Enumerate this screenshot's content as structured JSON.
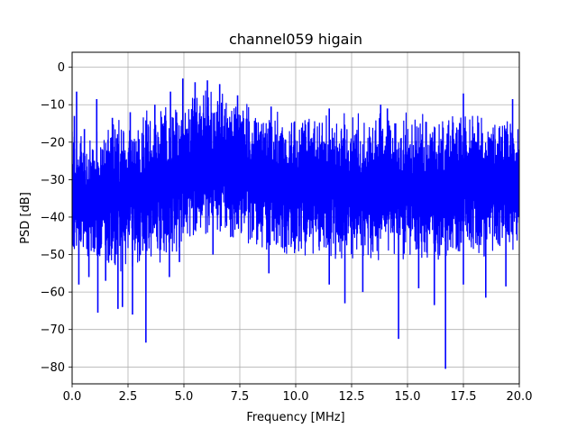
{
  "chart_data": {
    "type": "line",
    "title": "channel059 higain",
    "xlabel": "Frequency [MHz]",
    "ylabel": "PSD [dB]",
    "xlim": [
      0,
      20
    ],
    "ylim": [
      -84.5,
      4
    ],
    "grid": true,
    "line_color": "#0000ff",
    "x_ticks": [
      {
        "value": 0,
        "label": "0.0"
      },
      {
        "value": 2.5,
        "label": "2.5"
      },
      {
        "value": 5,
        "label": "5.0"
      },
      {
        "value": 7.5,
        "label": "7.5"
      },
      {
        "value": 10,
        "label": "10.0"
      },
      {
        "value": 12.5,
        "label": "12.5"
      },
      {
        "value": 15,
        "label": "15.0"
      },
      {
        "value": 17.5,
        "label": "17.5"
      },
      {
        "value": 20,
        "label": "20.0"
      }
    ],
    "y_ticks": [
      {
        "value": 0,
        "label": "0"
      },
      {
        "value": -10,
        "label": "−10"
      },
      {
        "value": -20,
        "label": "−20"
      },
      {
        "value": -30,
        "label": "−30"
      },
      {
        "value": -40,
        "label": "−40"
      },
      {
        "value": -50,
        "label": "−50"
      },
      {
        "value": -60,
        "label": "−60"
      },
      {
        "value": -70,
        "label": "−70"
      },
      {
        "value": -80,
        "label": "−80"
      }
    ],
    "series": [
      {
        "upper_envelope": {
          "x": [
            0,
            0.5,
            1,
            1.5,
            2,
            2.5,
            3,
            3.5,
            4,
            4.5,
            5,
            5.5,
            6,
            6.5,
            7,
            7.5,
            8,
            8.5,
            9,
            9.5,
            10,
            10.5,
            11,
            11.5,
            12,
            12.5,
            13,
            13.5,
            14,
            14.5,
            15,
            15.5,
            16,
            16.5,
            17,
            17.5,
            18,
            18.5,
            19,
            19.5,
            20
          ],
          "y": [
            -17,
            -16.5,
            -16,
            -15,
            -14,
            -13,
            -12,
            -11,
            -10,
            -9,
            -7,
            -5.5,
            -5,
            -5.5,
            -7,
            -8.5,
            -10,
            -11,
            -11.5,
            -12,
            -12,
            -12,
            -12,
            -12,
            -12,
            -12,
            -12,
            -12,
            -12,
            -12,
            -12,
            -12,
            -12.5,
            -12.5,
            -12.5,
            -12,
            -12,
            -12,
            -12,
            -12,
            -12.5
          ]
        },
        "lower_envelope": {
          "x": [
            0,
            0.5,
            1,
            1.5,
            2,
            2.5,
            3,
            3.5,
            4,
            4.5,
            5,
            5.5,
            6,
            6.5,
            7,
            7.5,
            8,
            8.5,
            9,
            9.5,
            10,
            10.5,
            11,
            11.5,
            12,
            12.5,
            13,
            13.5,
            14,
            14.5,
            15,
            15.5,
            16,
            16.5,
            17,
            17.5,
            18,
            18.5,
            19,
            19.5,
            20
          ],
          "y": [
            -50,
            -53,
            -55,
            -55,
            -56,
            -55,
            -55,
            -53,
            -52,
            -51,
            -49,
            -47,
            -46,
            -46,
            -47,
            -48,
            -49,
            -50,
            -51,
            -51,
            -51,
            -51,
            -51,
            -51,
            -52,
            -52,
            -52,
            -52,
            -52,
            -52,
            -52,
            -52,
            -52,
            -53,
            -52,
            -52,
            -52,
            -52,
            -52,
            -52,
            -52
          ]
        },
        "peaks": [
          {
            "x": 0.1,
            "y": -13
          },
          {
            "x": 0.2,
            "y": -6.5
          },
          {
            "x": 0.55,
            "y": -16.5
          },
          {
            "x": 1.1,
            "y": -8.5
          },
          {
            "x": 1.8,
            "y": -13.5
          },
          {
            "x": 2.6,
            "y": -12
          },
          {
            "x": 3.7,
            "y": -10
          },
          {
            "x": 4.4,
            "y": -6.5
          },
          {
            "x": 4.95,
            "y": -3
          },
          {
            "x": 5.5,
            "y": -4
          },
          {
            "x": 6.05,
            "y": -3.5
          },
          {
            "x": 6.6,
            "y": -4.5
          },
          {
            "x": 7.4,
            "y": -7.5
          },
          {
            "x": 8.9,
            "y": -10.5
          },
          {
            "x": 11.5,
            "y": -11
          },
          {
            "x": 13.8,
            "y": -10
          },
          {
            "x": 14.1,
            "y": -11
          },
          {
            "x": 17.5,
            "y": -7
          },
          {
            "x": 19.7,
            "y": -8.5
          }
        ],
        "dips": [
          {
            "x": 0.3,
            "y": -58
          },
          {
            "x": 0.75,
            "y": -56
          },
          {
            "x": 1.15,
            "y": -65.5
          },
          {
            "x": 1.5,
            "y": -57
          },
          {
            "x": 2.05,
            "y": -64.5
          },
          {
            "x": 2.25,
            "y": -64
          },
          {
            "x": 2.7,
            "y": -66
          },
          {
            "x": 3.3,
            "y": -73.5
          },
          {
            "x": 4.35,
            "y": -56
          },
          {
            "x": 4.8,
            "y": -52
          },
          {
            "x": 6.3,
            "y": -50
          },
          {
            "x": 8.8,
            "y": -55
          },
          {
            "x": 11.5,
            "y": -58
          },
          {
            "x": 12.2,
            "y": -63
          },
          {
            "x": 13,
            "y": -60
          },
          {
            "x": 14.6,
            "y": -72.5
          },
          {
            "x": 15.5,
            "y": -59
          },
          {
            "x": 16.2,
            "y": -63.5
          },
          {
            "x": 16.7,
            "y": -80.5
          },
          {
            "x": 17.5,
            "y": -58
          },
          {
            "x": 18.5,
            "y": -61.5
          },
          {
            "x": 19.4,
            "y": -58.5
          }
        ]
      }
    ]
  }
}
